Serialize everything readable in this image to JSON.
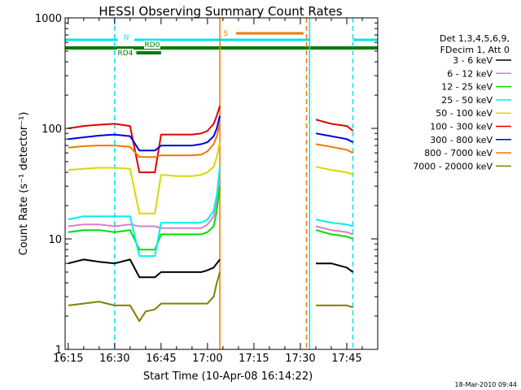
{
  "chart_data": {
    "type": "line",
    "title": "HESSI Observing Summary Count Rates",
    "xlabel": "Start Time (10-Apr-08 16:14:22)",
    "ylabel": "Count Rate (s⁻¹ detector⁻¹)",
    "yscale": "log",
    "ylim": [
      1,
      1000
    ],
    "xlim": [
      "16:14",
      "17:55"
    ],
    "x_ticks": [
      "16:15",
      "16:30",
      "16:45",
      "17:00",
      "17:15",
      "17:30",
      "17:45"
    ],
    "y_ticks": [
      "1",
      "10",
      "100",
      "1000"
    ],
    "footer": "18-Mar-2010 09:44",
    "legend": {
      "placement": "right",
      "header": [
        "Det 1,3,4,5,6,9,",
        "FDecim 1, Att 0"
      ]
    },
    "flags": [
      {
        "label": "N",
        "color": "#00e5ee",
        "segments": [
          [
            "16:14",
            "16:31"
          ],
          [
            "16:32",
            "17:33"
          ],
          [
            "17:47",
            "17:55"
          ]
        ]
      },
      {
        "label": "S",
        "color": "#f07800",
        "segments": [
          [
            "17:05",
            "17:31"
          ]
        ]
      },
      {
        "label": "RD0",
        "color": "#007a00",
        "segments": [
          [
            "16:14",
            "17:55"
          ]
        ]
      },
      {
        "label": "RD4",
        "color": "#007a00",
        "segments": [
          [
            "16:37",
            "16:45"
          ]
        ]
      }
    ],
    "markers": [
      {
        "time": "16:30",
        "color": "#00e5ee",
        "style": "dashed"
      },
      {
        "time": "17:04",
        "color": "#f07800",
        "style": "solid"
      },
      {
        "time": "17:32",
        "color": "#f07800",
        "style": "dashed"
      },
      {
        "time": "17:33",
        "color": "#00e5ee",
        "style": "solid"
      },
      {
        "time": "17:47",
        "color": "#00e5ee",
        "style": "dashed"
      }
    ],
    "time_axis": [
      "16:15",
      "16:20",
      "16:25",
      "16:30",
      "16:35",
      "16:38",
      "16:40",
      "16:43",
      "16:45",
      "16:50",
      "16:55",
      "16:58",
      "17:00",
      "17:02",
      "17:03",
      "17:04",
      "17:33",
      "17:35",
      "17:40",
      "17:45",
      "17:47"
    ],
    "series": [
      {
        "name": "3 - 6 keV",
        "color": "#000000",
        "values": [
          6,
          6.5,
          6.2,
          6,
          6.5,
          4.5,
          4.5,
          4.5,
          5,
          5,
          5,
          5,
          5.2,
          5.5,
          6,
          6.5,
          null,
          6,
          6,
          5.5,
          5
        ]
      },
      {
        "name": "6 - 12 keV",
        "color": "#e07cc8",
        "values": [
          13,
          13.5,
          13.5,
          13,
          13.5,
          13,
          13,
          13,
          12.5,
          12.5,
          12.5,
          12.5,
          13.5,
          16,
          22,
          35,
          null,
          13,
          12,
          11.5,
          11
        ]
      },
      {
        "name": "12 - 25 keV",
        "color": "#00e000",
        "values": [
          11.5,
          12,
          12,
          11.5,
          12,
          8,
          8,
          8,
          11,
          11,
          11,
          11,
          11.5,
          13,
          18,
          30,
          null,
          12,
          11,
          10.5,
          10
        ]
      },
      {
        "name": "25 - 50 keV",
        "color": "#00f0f0",
        "values": [
          15,
          16,
          16,
          16,
          16,
          7,
          7,
          7,
          14,
          14,
          14,
          14,
          15,
          18,
          25,
          45,
          null,
          15,
          14,
          13.5,
          13
        ]
      },
      {
        "name": "50 - 100 keV",
        "color": "#d8d800",
        "values": [
          42,
          43,
          44,
          44,
          43,
          17,
          17,
          17,
          38,
          37,
          37,
          38,
          40,
          45,
          55,
          75,
          null,
          45,
          42,
          40,
          38
        ]
      },
      {
        "name": "100 - 300 keV",
        "color": "#e00000",
        "values": [
          100,
          105,
          108,
          110,
          105,
          40,
          40,
          40,
          88,
          88,
          88,
          90,
          95,
          110,
          130,
          160,
          null,
          120,
          110,
          105,
          95
        ]
      },
      {
        "name": "300 - 800 keV",
        "color": "#0000e0",
        "values": [
          80,
          83,
          86,
          88,
          85,
          63,
          63,
          63,
          70,
          70,
          70,
          72,
          75,
          85,
          100,
          130,
          null,
          90,
          85,
          80,
          75
        ]
      },
      {
        "name": "800 - 7000 keV",
        "color": "#f07800",
        "values": [
          67,
          69,
          70,
          70,
          68,
          55,
          55,
          55,
          57,
          57,
          57,
          58,
          62,
          72,
          85,
          110,
          null,
          72,
          68,
          64,
          60
        ]
      },
      {
        "name": "7000 - 20000 keV",
        "color": "#808000",
        "values": [
          2.5,
          2.6,
          2.7,
          2.5,
          2.5,
          1.8,
          2.2,
          2.3,
          2.6,
          2.6,
          2.6,
          2.6,
          2.6,
          3,
          4,
          5,
          null,
          2.5,
          2.5,
          2.5,
          2.4
        ]
      }
    ]
  }
}
